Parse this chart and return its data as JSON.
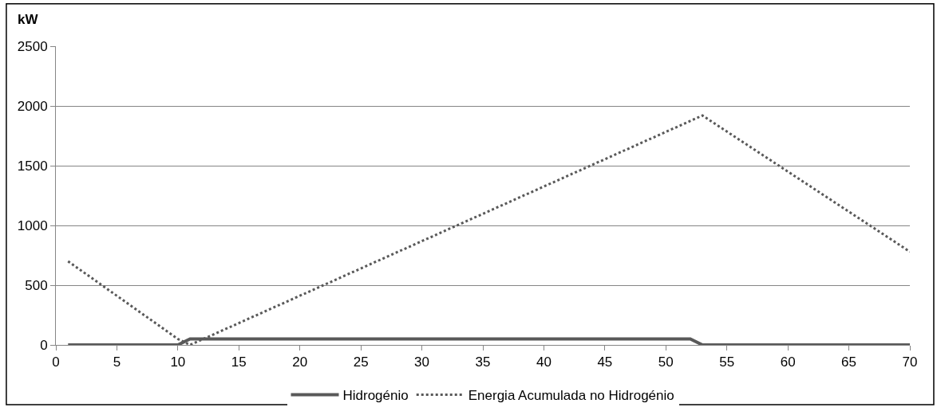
{
  "chart_data": {
    "type": "line",
    "ylabel": "kW",
    "xlim": [
      0,
      70
    ],
    "xticks": [
      0,
      5,
      10,
      15,
      20,
      25,
      30,
      35,
      40,
      45,
      50,
      55,
      60,
      65,
      70
    ],
    "ylim": [
      0,
      2500
    ],
    "yticks": [
      0,
      500,
      1000,
      1500,
      2000,
      2500
    ],
    "grid": "y",
    "legend": "bottom",
    "marker": "none",
    "series": [
      {
        "name": "Hidrogénio",
        "color": "#595959",
        "line_style": "solid",
        "x": [
          1,
          10,
          11,
          52,
          53,
          70
        ],
        "values": [
          0,
          0,
          50,
          50,
          0,
          0
        ]
      },
      {
        "name": "Energia Acumulada no Hidrogénio",
        "color": "#595959",
        "line_style": "dotted",
        "x": [
          1,
          10,
          11,
          53,
          70
        ],
        "values": [
          700,
          50,
          0,
          1920,
          780
        ]
      }
    ]
  }
}
